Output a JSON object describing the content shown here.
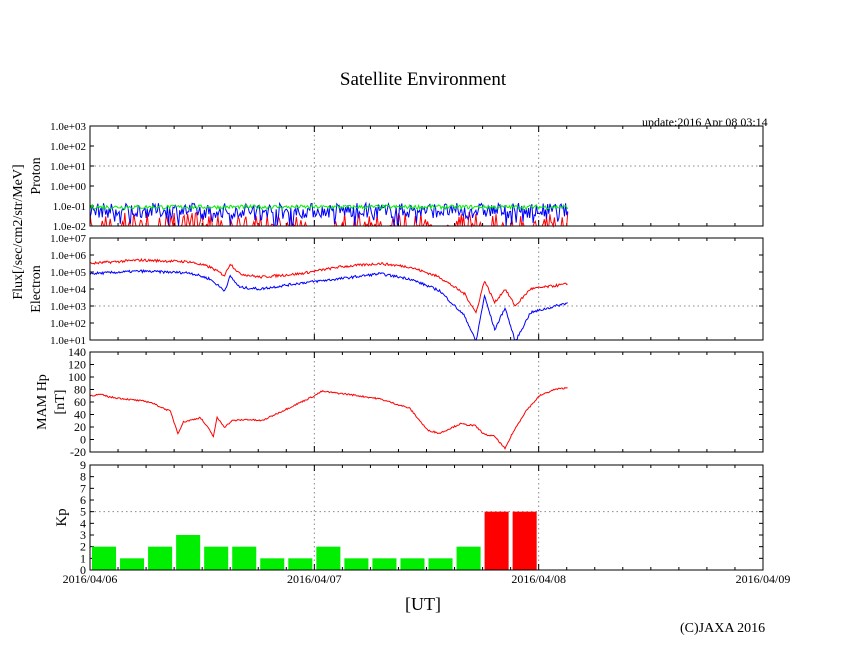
{
  "title": "Satellite Environment",
  "update": "update:2016 Apr 08 03:14",
  "xlabel": "[UT]",
  "copyright": "(C)JAXA 2016",
  "flux_label": "Flux[/sec/cm2/str/MeV]",
  "colors": {
    "red": "#ff0000",
    "blue": "#0000ff",
    "green": "#00ee00",
    "grid": "#888888"
  },
  "chart_data": [
    {
      "type": "line",
      "name": "proton",
      "ylabel": "Proton",
      "yscale": "log",
      "ylim": [
        -2,
        3
      ],
      "yticks": [
        "1.0e-02",
        "1.0e-01",
        "1.0e+00",
        "1.0e+01",
        "1.0e+02",
        "1.0e+03"
      ],
      "series": [
        {
          "name": "blue",
          "level": [
            -1.6,
            -0.85
          ]
        },
        {
          "name": "green",
          "level": [
            -1.15,
            -0.95
          ]
        },
        {
          "name": "red",
          "level": [
            -2,
            -1.3
          ]
        }
      ],
      "data_end_hours": 51.2
    },
    {
      "type": "line",
      "name": "electron",
      "ylabel": "Electron",
      "yscale": "log",
      "ylim": [
        1,
        7
      ],
      "yticks": [
        "1.0e+01",
        "1.0e+02",
        "1.0e+03",
        "1.0e+04",
        "1.0e+05",
        "1.0e+06",
        "1.0e+07"
      ],
      "series": [
        {
          "name": "red",
          "hours": [
            0,
            5.3,
            10.7,
            12.8,
            14.4,
            15,
            16,
            18.2,
            22.5,
            26.7,
            31,
            34.2,
            37.4,
            40.1,
            41.3,
            42.2,
            43.3,
            44.4,
            45.5,
            47.1,
            51.2
          ],
          "values": [
            5.5,
            5.7,
            5.6,
            5.3,
            4.8,
            5.5,
            4.9,
            4.7,
            4.9,
            5.3,
            5.5,
            5.3,
            4.7,
            3.7,
            2.6,
            4.5,
            3.2,
            4.0,
            3.0,
            4.0,
            4.3
          ]
        },
        {
          "name": "blue",
          "hours": [
            0,
            5.3,
            10.7,
            12.8,
            14.4,
            15,
            16,
            18.2,
            22.5,
            26.7,
            31,
            34.2,
            37.4,
            40.1,
            41.3,
            42.2,
            43.3,
            44.4,
            45.5,
            47.1,
            51.2
          ],
          "values": [
            4.9,
            5.05,
            4.95,
            4.6,
            3.9,
            4.75,
            4.1,
            4.0,
            4.35,
            4.6,
            4.9,
            4.6,
            3.9,
            2.4,
            0.9,
            3.6,
            1.6,
            2.9,
            0.9,
            2.6,
            3.2
          ]
        }
      ]
    },
    {
      "type": "line",
      "name": "mam_hp",
      "ylabel": "MAM Hp",
      "ylabel2": "[nT]",
      "ylim": [
        -20,
        140
      ],
      "yticks": [
        "-20",
        "0",
        "20",
        "40",
        "60",
        "80",
        "100",
        "120",
        "140"
      ],
      "series": [
        {
          "name": "red",
          "hours": [
            0,
            1.1,
            2.1,
            6.4,
            8.6,
            9.4,
            10,
            11.8,
            12.8,
            13.2,
            13.6,
            14.4,
            15.2,
            16.8,
            18.4,
            20.5,
            24,
            24.8,
            27.8,
            31,
            34.2,
            36.1,
            37.4,
            39.6,
            41.2,
            42.2,
            43.3,
            44.4,
            45.2,
            46.6,
            48.1,
            49.7,
            51.2
          ],
          "values": [
            70,
            72,
            68,
            60,
            45,
            10,
            28,
            35,
            15,
            5,
            35,
            20,
            30,
            32,
            30,
            45,
            70,
            77,
            72,
            65,
            50,
            15,
            10,
            25,
            22,
            8,
            5,
            -15,
            10,
            45,
            70,
            80,
            83
          ]
        }
      ]
    },
    {
      "type": "bar",
      "name": "kp",
      "ylabel": "Kp",
      "ylim": [
        0,
        9
      ],
      "yticks": [
        "0",
        "1",
        "2",
        "3",
        "4",
        "5",
        "6",
        "7",
        "8",
        "9"
      ],
      "values": [
        2,
        1,
        2,
        3,
        2,
        2,
        1,
        1,
        2,
        1,
        1,
        1,
        1,
        2,
        5,
        5
      ],
      "threshold": 5,
      "colors_rule": "green<5, red>=5"
    }
  ],
  "xticks": [
    "2016/04/06",
    "2016/04/07",
    "2016/04/08",
    "2016/04/09"
  ]
}
